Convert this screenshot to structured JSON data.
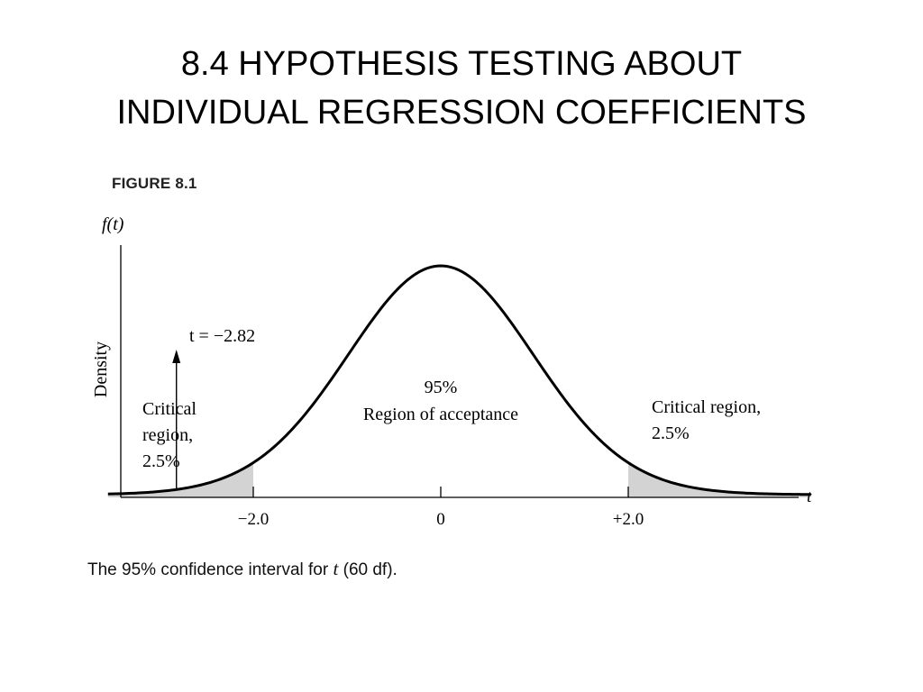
{
  "slide": {
    "title_line1": "8.4 HYPOTHESIS TESTING ABOUT",
    "title_line2": "INDIVIDUAL REGRESSION COEFFICIENTS"
  },
  "figure": {
    "label": "FIGURE 8.1",
    "y_axis_function_label": "f(t)",
    "y_axis_label": "Density",
    "x_axis_label": "t",
    "x_ticks": [
      {
        "value": -2.0,
        "label": "−2.0"
      },
      {
        "value": 0,
        "label": "0"
      },
      {
        "value": 2.0,
        "label": "+2.0"
      }
    ],
    "x_range": [
      -3.55,
      3.95
    ],
    "distribution": "t",
    "degrees_of_freedom": 60,
    "critical_values": [
      -2.0,
      2.0
    ],
    "observed_t": {
      "value": -2.82,
      "label": "t = −2.82"
    },
    "annotations": {
      "center_percent": "95%",
      "center_text": "Region of acceptance",
      "left_line1": "Critical",
      "left_line2": "region,",
      "left_line3": "2.5%",
      "right_line1": "Critical region,",
      "right_line2": "2.5%"
    },
    "shade_color": "#d3d3d3",
    "line_color": "#000000",
    "caption_prefix": "The 95% confidence interval for ",
    "caption_var": "t",
    "caption_suffix": " (60 df)."
  }
}
